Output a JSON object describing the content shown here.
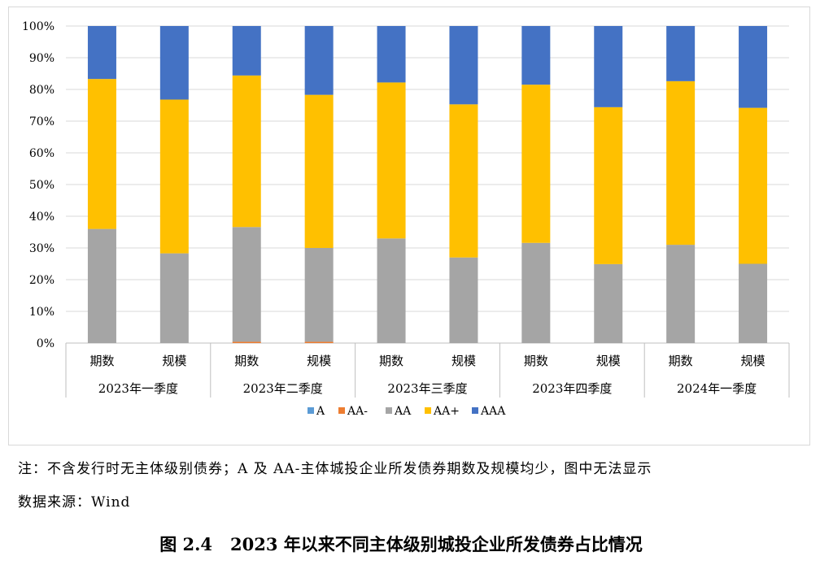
{
  "chart_data": {
    "type": "stacked-bar-100",
    "y_ticks": [
      "0%",
      "10%",
      "20%",
      "30%",
      "40%",
      "50%",
      "60%",
      "70%",
      "80%",
      "90%",
      "100%"
    ],
    "ylim": [
      0,
      100
    ],
    "groups": [
      "2023年一季度",
      "2023年二季度",
      "2023年三季度",
      "2023年四季度",
      "2024年一季度"
    ],
    "categories": [
      "期数",
      "规模",
      "期数",
      "规模",
      "期数",
      "规模",
      "期数",
      "规模",
      "期数",
      "规模"
    ],
    "series": [
      {
        "name": "A",
        "color": "#5b9bd5",
        "values": [
          0,
          0,
          0,
          0,
          0,
          0,
          0,
          0,
          0,
          0
        ]
      },
      {
        "name": "AA-",
        "color": "#ed7d31",
        "values": [
          0,
          0,
          0.4,
          0.4,
          0,
          0,
          0,
          0,
          0,
          0
        ]
      },
      {
        "name": "AA",
        "color": "#a5a5a5",
        "values": [
          36.0,
          28.3,
          36.2,
          29.6,
          33.0,
          27.0,
          31.6,
          24.9,
          31.0,
          25.0
        ]
      },
      {
        "name": "AA+",
        "color": "#ffc000",
        "values": [
          47.3,
          48.5,
          47.8,
          48.3,
          49.2,
          48.3,
          49.9,
          49.5,
          51.6,
          49.2
        ]
      },
      {
        "name": "AAA",
        "color": "#4472c4",
        "values": [
          16.7,
          23.2,
          15.6,
          21.7,
          17.8,
          24.7,
          18.5,
          25.6,
          17.4,
          25.8
        ]
      }
    ],
    "legend_position": "bottom"
  },
  "footer": {
    "note": "注：不含发行时无主体级别债券；A 及 AA-主体城投企业所发债券期数及规模均少，图中无法显示",
    "source": "数据来源：Wind",
    "figure_number": "图 2.4",
    "figure_title": "2023 年以来不同主体级别城投企业所发债券占比情况"
  }
}
